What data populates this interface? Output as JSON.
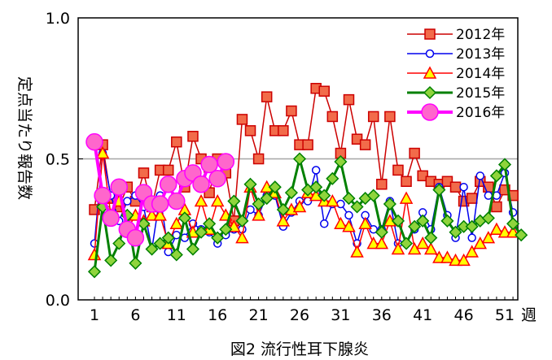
{
  "chart_data": {
    "type": "line",
    "caption": "図2 流行性耳下腺炎",
    "ylabel": "定点当たり報告数",
    "xlabel_unit": "週",
    "ylim": [
      0.0,
      1.0
    ],
    "y_ticks": [
      "0.0",
      "0.5",
      "1.0"
    ],
    "gridlines_y": [
      0.5
    ],
    "x_ticks": [
      1,
      6,
      11,
      16,
      21,
      26,
      31,
      36,
      41,
      46,
      51
    ],
    "xlim": [
      0,
      53
    ],
    "legend_position": "top-right",
    "series": [
      {
        "name": "2012年",
        "color": "#cc0000",
        "fill": "#f26b4a",
        "marker": "square",
        "values": [
          0.32,
          0.55,
          0.36,
          0.33,
          0.4,
          0.35,
          0.45,
          0.33,
          0.46,
          0.46,
          0.56,
          0.4,
          0.58,
          0.5,
          0.38,
          0.5,
          0.45,
          0.28,
          0.64,
          0.6,
          0.5,
          0.72,
          0.6,
          0.6,
          0.67,
          0.55,
          0.55,
          0.75,
          0.74,
          0.65,
          0.52,
          0.71,
          0.57,
          0.55,
          0.65,
          0.41,
          0.65,
          0.46,
          0.42,
          0.52,
          0.44,
          0.42,
          0.41,
          0.42,
          0.4,
          0.35,
          0.36,
          0.42,
          0.4,
          0.33,
          0.39,
          0.37
        ]
      },
      {
        "name": "2013年",
        "color": "#0000ee",
        "fill": "#ffffff",
        "marker": "circle",
        "values": [
          0.2,
          0.52,
          0.37,
          0.28,
          0.35,
          0.37,
          0.33,
          0.18,
          0.37,
          0.17,
          0.23,
          0.22,
          0.27,
          0.25,
          0.24,
          0.2,
          0.23,
          0.25,
          0.25,
          0.32,
          0.3,
          0.37,
          0.37,
          0.26,
          0.31,
          0.35,
          0.35,
          0.46,
          0.27,
          0.34,
          0.34,
          0.3,
          0.2,
          0.3,
          0.25,
          0.25,
          0.35,
          0.2,
          0.2,
          0.25,
          0.31,
          0.25,
          0.4,
          0.3,
          0.22,
          0.4,
          0.22,
          0.44,
          0.37,
          0.37,
          0.45,
          0.31
        ]
      },
      {
        "name": "2014年",
        "color": "#ff0000",
        "fill": "#ffff00",
        "marker": "triangle",
        "values": [
          0.16,
          0.52,
          0.3,
          0.35,
          0.25,
          0.3,
          0.28,
          0.3,
          0.3,
          0.2,
          0.27,
          0.32,
          0.24,
          0.35,
          0.25,
          0.35,
          0.3,
          0.26,
          0.22,
          0.4,
          0.3,
          0.4,
          0.38,
          0.28,
          0.32,
          0.33,
          0.38,
          0.37,
          0.35,
          0.35,
          0.27,
          0.26,
          0.17,
          0.27,
          0.2,
          0.2,
          0.28,
          0.18,
          0.36,
          0.18,
          0.2,
          0.18,
          0.15,
          0.15,
          0.14,
          0.14,
          0.17,
          0.2,
          0.22,
          0.25,
          0.24,
          0.24
        ]
      },
      {
        "name": "2015年",
        "color": "#008000",
        "fill": "#8fd43c",
        "marker": "diamond",
        "values": [
          0.1,
          0.33,
          0.14,
          0.2,
          0.3,
          0.13,
          0.27,
          0.18,
          0.2,
          0.22,
          0.16,
          0.29,
          0.18,
          0.24,
          0.27,
          0.22,
          0.25,
          0.35,
          0.28,
          0.41,
          0.34,
          0.36,
          0.4,
          0.32,
          0.38,
          0.5,
          0.39,
          0.4,
          0.37,
          0.43,
          0.49,
          0.36,
          0.33,
          0.36,
          0.37,
          0.24,
          0.34,
          0.28,
          0.2,
          0.26,
          0.28,
          0.22,
          0.39,
          0.28,
          0.24,
          0.26,
          0.26,
          0.28,
          0.29,
          0.44,
          0.48,
          0.27,
          0.23
        ]
      },
      {
        "name": "2016年",
        "color": "#ff00ff",
        "fill": "#ff66cc",
        "marker": "circle-large",
        "values": [
          0.56,
          0.37,
          0.29,
          0.4,
          0.25,
          0.22,
          0.38,
          0.34,
          0.34,
          0.41,
          0.35,
          0.43,
          0.45,
          0.41,
          0.48,
          0.43,
          0.49
        ]
      }
    ]
  }
}
